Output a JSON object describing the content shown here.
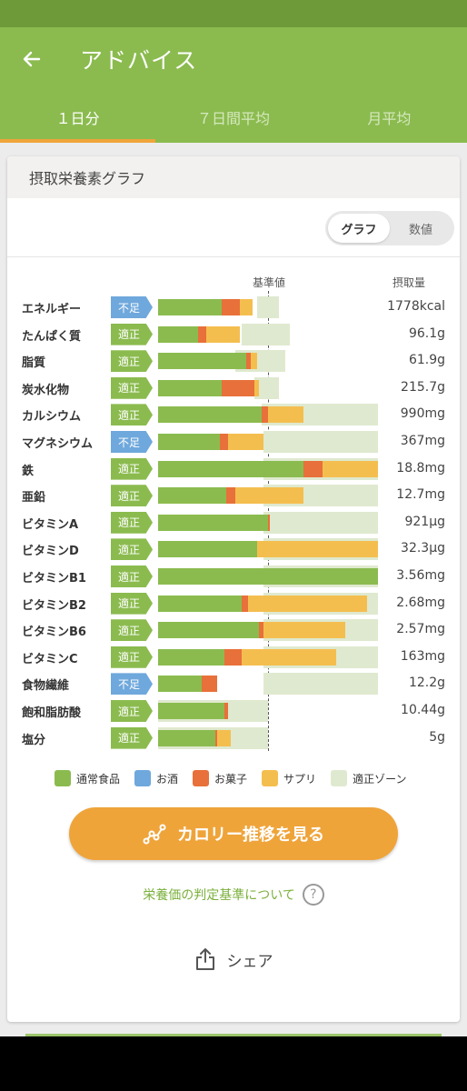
{
  "app": {
    "title": "アドバイス"
  },
  "tabs": [
    {
      "label": "１日分",
      "active": true
    },
    {
      "label": "７日間平均",
      "active": false
    },
    {
      "label": "月平均",
      "active": false
    }
  ],
  "card": {
    "title": "摂取栄養素グラフ"
  },
  "toggle": {
    "graph": "グラフ",
    "value": "数値",
    "selected": "graph"
  },
  "chart_data": {
    "type": "bar",
    "headers": {
      "reference": "基準値",
      "intake": "摂取量"
    },
    "reference_percent": 50,
    "series_names": [
      "通常食品",
      "お酒",
      "お菓子",
      "サプリ"
    ],
    "rows": [
      {
        "name": "エネルギー",
        "status": "不足",
        "status_type": "low",
        "value": "1778kcal",
        "food": 29,
        "alcohol": 0,
        "snack": 8,
        "supplement": 6,
        "zone": [
          45,
          55
        ]
      },
      {
        "name": "たんぱく質",
        "status": "適正",
        "status_type": "ok",
        "value": "96.1g",
        "food": 18,
        "alcohol": 0,
        "snack": 4,
        "supplement": 15,
        "zone": [
          38,
          60
        ]
      },
      {
        "name": "脂質",
        "status": "適正",
        "status_type": "ok",
        "value": "61.9g",
        "food": 40,
        "alcohol": 0,
        "snack": 2,
        "supplement": 3,
        "zone": [
          35,
          58
        ]
      },
      {
        "name": "炭水化物",
        "status": "適正",
        "status_type": "ok",
        "value": "215.7g",
        "food": 29,
        "alcohol": 0,
        "snack": 15,
        "supplement": 2,
        "zone": [
          44,
          55
        ]
      },
      {
        "name": "カルシウム",
        "status": "適正",
        "status_type": "ok",
        "value": "990mg",
        "food": 47,
        "alcohol": 0,
        "snack": 3,
        "supplement": 16,
        "zone": [
          47,
          100
        ]
      },
      {
        "name": "マグネシウム",
        "status": "不足",
        "status_type": "low",
        "value": "367mg",
        "food": 28,
        "alcohol": 0,
        "snack": 4,
        "supplement": 16,
        "zone": [
          48,
          100
        ]
      },
      {
        "name": "鉄",
        "status": "適正",
        "status_type": "ok",
        "value": "18.8mg",
        "food": 66,
        "alcohol": 0,
        "snack": 9,
        "supplement": 25,
        "zone": [
          48,
          100
        ]
      },
      {
        "name": "亜鉛",
        "status": "適正",
        "status_type": "ok",
        "value": "12.7mg",
        "food": 31,
        "alcohol": 0,
        "snack": 4,
        "supplement": 31,
        "zone": [
          48,
          100
        ]
      },
      {
        "name": "ビタミンA",
        "status": "適正",
        "status_type": "ok",
        "value": "921μg",
        "food": 50,
        "alcohol": 0,
        "snack": 1,
        "supplement": 0,
        "zone": [
          48,
          100
        ]
      },
      {
        "name": "ビタミンD",
        "status": "適正",
        "status_type": "ok",
        "value": "32.3μg",
        "food": 45,
        "alcohol": 0,
        "snack": 0,
        "supplement": 55,
        "zone": [
          48,
          100
        ]
      },
      {
        "name": "ビタミンB1",
        "status": "適正",
        "status_type": "ok",
        "value": "3.56mg",
        "food": 100,
        "alcohol": 0,
        "snack": 0,
        "supplement": 0,
        "zone": [
          48,
          100
        ]
      },
      {
        "name": "ビタミンB2",
        "status": "適正",
        "status_type": "ok",
        "value": "2.68mg",
        "food": 38,
        "alcohol": 0,
        "snack": 3,
        "supplement": 54,
        "zone": [
          48,
          100
        ]
      },
      {
        "name": "ビタミンB6",
        "status": "適正",
        "status_type": "ok",
        "value": "2.57mg",
        "food": 46,
        "alcohol": 0,
        "snack": 2,
        "supplement": 37,
        "zone": [
          48,
          100
        ]
      },
      {
        "name": "ビタミンC",
        "status": "適正",
        "status_type": "ok",
        "value": "163mg",
        "food": 30,
        "alcohol": 0,
        "snack": 8,
        "supplement": 43,
        "zone": [
          48,
          100
        ]
      },
      {
        "name": "食物繊維",
        "status": "不足",
        "status_type": "low",
        "value": "12.2g",
        "food": 20,
        "alcohol": 0,
        "snack": 7,
        "supplement": 0,
        "zone": [
          48,
          100
        ]
      },
      {
        "name": "飽和脂肪酸",
        "status": "適正",
        "status_type": "ok",
        "value": "10.44g",
        "food": 30,
        "alcohol": 0,
        "snack": 2,
        "supplement": 0,
        "zone": [
          0,
          50
        ]
      },
      {
        "name": "塩分",
        "status": "適正",
        "status_type": "ok",
        "value": "5g",
        "food": 26,
        "alcohol": 0,
        "snack": 1,
        "supplement": 6,
        "zone": [
          0,
          50
        ]
      }
    ]
  },
  "legend": [
    {
      "label": "通常食品",
      "color": "#8bbb4f"
    },
    {
      "label": "お酒",
      "color": "#6fa8dc"
    },
    {
      "label": "お菓子",
      "color": "#e8703a"
    },
    {
      "label": "サプリ",
      "color": "#f4be4f"
    },
    {
      "label": "適正ゾーン",
      "color": "#dfe9cf"
    }
  ],
  "cta": {
    "label": "カロリー推移を見る"
  },
  "criteria": {
    "label": "栄養価の判定基準について"
  },
  "share": {
    "label": "シェア"
  }
}
